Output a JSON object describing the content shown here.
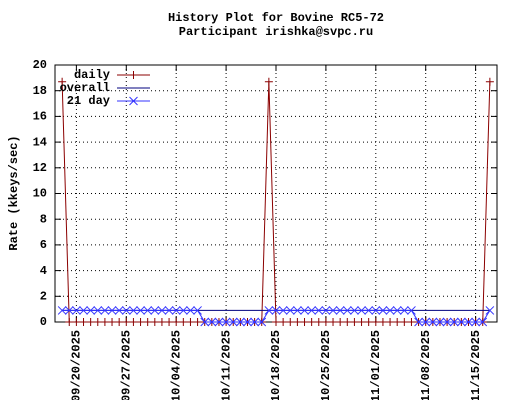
{
  "chart_data": {
    "type": "line",
    "title": "History Plot for Bovine RC5-72",
    "subtitle": "Participant irishka@svpc.ru",
    "y_label": "Rate (kkeys/sec)",
    "x": [
      "2025-09-18",
      "2025-09-19",
      "2025-09-20",
      "2025-09-21",
      "2025-09-22",
      "2025-09-23",
      "2025-09-24",
      "2025-09-25",
      "2025-09-26",
      "2025-09-27",
      "2025-09-28",
      "2025-09-29",
      "2025-09-30",
      "2025-10-01",
      "2025-10-02",
      "2025-10-03",
      "2025-10-04",
      "2025-10-05",
      "2025-10-06",
      "2025-10-07",
      "2025-10-08",
      "2025-10-09",
      "2025-10-10",
      "2025-10-11",
      "2025-10-12",
      "2025-10-13",
      "2025-10-14",
      "2025-10-15",
      "2025-10-16",
      "2025-10-17",
      "2025-10-18",
      "2025-10-19",
      "2025-10-20",
      "2025-10-21",
      "2025-10-22",
      "2025-10-23",
      "2025-10-24",
      "2025-10-25",
      "2025-10-26",
      "2025-10-27",
      "2025-10-28",
      "2025-10-29",
      "2025-10-30",
      "2025-10-31",
      "2025-11-01",
      "2025-11-02",
      "2025-11-03",
      "2025-11-04",
      "2025-11-05",
      "2025-11-06",
      "2025-11-07",
      "2025-11-08",
      "2025-11-09",
      "2025-11-10",
      "2025-11-11",
      "2025-11-12",
      "2025-11-13",
      "2025-11-14",
      "2025-11-15",
      "2025-11-16",
      "2025-11-17"
    ],
    "series": [
      {
        "name": "daily",
        "color": "#8b0000",
        "marker": "plus",
        "values": [
          18.7,
          0,
          0,
          0,
          0,
          0,
          0,
          0,
          0,
          0,
          0,
          0,
          0,
          0,
          0,
          0,
          0,
          0,
          0,
          0,
          0,
          0,
          0,
          0,
          0,
          0,
          0,
          0,
          0,
          18.7,
          0,
          0,
          0,
          0,
          0,
          0,
          0,
          0,
          0,
          0,
          0,
          0,
          0,
          0,
          0,
          0,
          0,
          0,
          0,
          0,
          0,
          0,
          0,
          0,
          0,
          0,
          0,
          0,
          0,
          0,
          18.7
        ]
      },
      {
        "name": "overall",
        "color": "#00007f",
        "marker": "none",
        "values": [
          0.9,
          0.9,
          0.9,
          0.9,
          0.9,
          0.9,
          0.9,
          0.9,
          0.9,
          0.9,
          0.9,
          0.9,
          0.9,
          0.9,
          0.9,
          0.9,
          0.9,
          0.9,
          0.9,
          0.9,
          0.9,
          0.9,
          0.9,
          0.9,
          0.9,
          0.9,
          0.9,
          0.9,
          0.9,
          0.9,
          0.9,
          0.9,
          0.9,
          0.9,
          0.9,
          0.9,
          0.9,
          0.9,
          0.9,
          0.9,
          0.9,
          0.9,
          0.9,
          0.9,
          0.9,
          0.9,
          0.9,
          0.9,
          0.9,
          0.9,
          0.9,
          0.9,
          0.9,
          0.9,
          0.9,
          0.9,
          0.9,
          0.9,
          0.9,
          0.9,
          0.9
        ]
      },
      {
        "name": "21 day",
        "color": "#3333ff",
        "marker": "cross",
        "values": [
          0.9,
          0.9,
          0.9,
          0.9,
          0.9,
          0.9,
          0.9,
          0.9,
          0.9,
          0.9,
          0.9,
          0.9,
          0.9,
          0.9,
          0.9,
          0.9,
          0.9,
          0.9,
          0.9,
          0.9,
          0,
          0,
          0,
          0,
          0,
          0,
          0,
          0,
          0,
          0.9,
          0.9,
          0.9,
          0.9,
          0.9,
          0.9,
          0.9,
          0.9,
          0.9,
          0.9,
          0.9,
          0.9,
          0.9,
          0.9,
          0.9,
          0.9,
          0.9,
          0.9,
          0.9,
          0.9,
          0.9,
          0,
          0,
          0,
          0,
          0,
          0,
          0,
          0,
          0,
          0,
          0.9
        ]
      }
    ],
    "xlim": [
      "2025-09-17",
      "2025-11-18"
    ],
    "xticks": [
      {
        "value": "2025-09-20",
        "label": "09/20/2025"
      },
      {
        "value": "2025-09-27",
        "label": "09/27/2025"
      },
      {
        "value": "2025-10-04",
        "label": "10/04/2025"
      },
      {
        "value": "2025-10-11",
        "label": "10/11/2025"
      },
      {
        "value": "2025-10-18",
        "label": "10/18/2025"
      },
      {
        "value": "2025-10-25",
        "label": "10/25/2025"
      },
      {
        "value": "2025-11-01",
        "label": "11/01/2025"
      },
      {
        "value": "2025-11-08",
        "label": "11/08/2025"
      },
      {
        "value": "2025-11-15",
        "label": "11/15/2025"
      }
    ],
    "ylim": [
      0,
      20
    ],
    "yticks": [
      0,
      2,
      4,
      6,
      8,
      10,
      12,
      14,
      16,
      18,
      20
    ],
    "grid": true,
    "legend": "top-left"
  }
}
